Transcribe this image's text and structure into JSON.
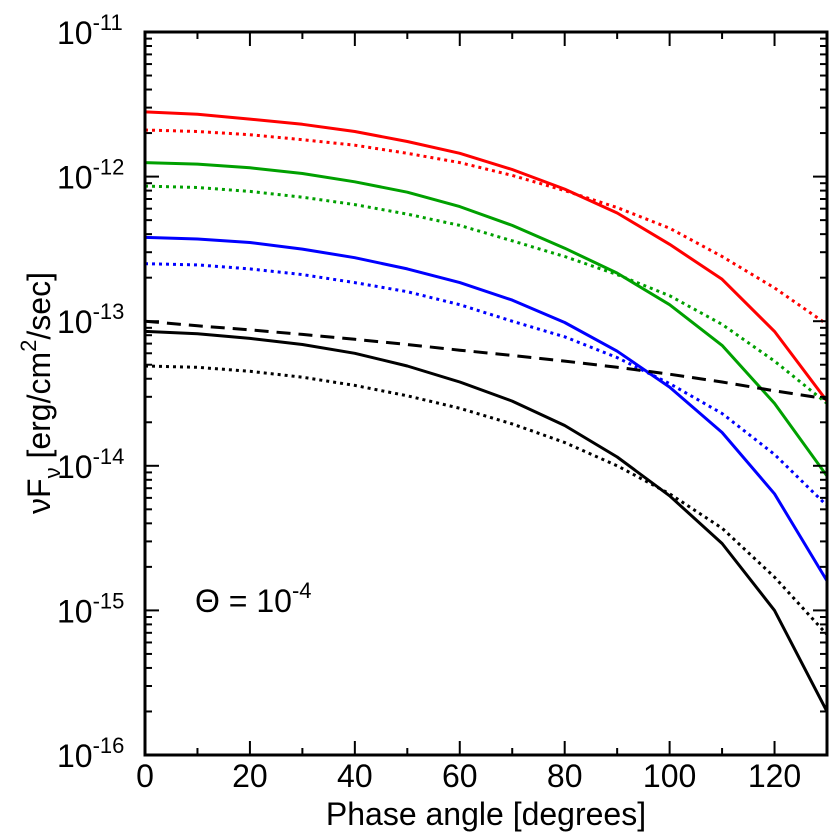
{
  "chart_data": {
    "type": "line",
    "xlabel": "Phase angle [degrees]",
    "ylabel": {
      "pre": "νF",
      "sub": "ν",
      "mid": " [erg/cm",
      "sup": "2",
      "post": "/sec]"
    },
    "annotation": {
      "pre": "Θ = 10",
      "sup": "-4"
    },
    "xlim": [
      0,
      130
    ],
    "ylim": [
      1e-16,
      1e-11
    ],
    "yscale": "log",
    "x_ticks": [
      0,
      20,
      40,
      60,
      80,
      100,
      120
    ],
    "y_ticks": [
      {
        "exp": -16,
        "base": "10",
        "sup": "-16"
      },
      {
        "exp": -15,
        "base": "10",
        "sup": "-15"
      },
      {
        "exp": -14,
        "base": "10",
        "sup": "-14"
      },
      {
        "exp": -13,
        "base": "10",
        "sup": "-13"
      },
      {
        "exp": -12,
        "base": "10",
        "sup": "-12"
      },
      {
        "exp": -11,
        "base": "10",
        "sup": "-11"
      }
    ],
    "x": [
      0,
      10,
      20,
      30,
      40,
      50,
      60,
      70,
      80,
      90,
      100,
      110,
      120,
      130
    ],
    "series": [
      {
        "color": "#ff0000",
        "style": "solid",
        "values": [
          2.8e-12,
          2.7e-12,
          2.5e-12,
          2.3e-12,
          2.05e-12,
          1.75e-12,
          1.45e-12,
          1.12e-12,
          8.2e-13,
          5.6e-13,
          3.4e-13,
          1.95e-13,
          8.5e-14,
          2.8e-14
        ]
      },
      {
        "color": "#ff0000",
        "style": "dotted",
        "values": [
          2.1e-12,
          2.05e-12,
          1.95e-12,
          1.8e-12,
          1.65e-12,
          1.45e-12,
          1.25e-12,
          1.02e-12,
          8e-13,
          6.1e-13,
          4.4e-13,
          2.8e-13,
          1.7e-13,
          9.5e-14
        ]
      },
      {
        "color": "#00a000",
        "style": "solid",
        "values": [
          1.25e-12,
          1.22e-12,
          1.15e-12,
          1.05e-12,
          9.2e-13,
          7.8e-13,
          6.2e-13,
          4.6e-13,
          3.2e-13,
          2.15e-13,
          1.3e-13,
          6.8e-14,
          2.7e-14,
          8.5e-15
        ]
      },
      {
        "color": "#00a000",
        "style": "dotted",
        "values": [
          8.6e-13,
          8.4e-13,
          7.9e-13,
          7.2e-13,
          6.4e-13,
          5.5e-13,
          4.6e-13,
          3.6e-13,
          2.8e-13,
          2.1e-13,
          1.5e-13,
          9.5e-14,
          5.3e-14,
          2.7e-14
        ]
      },
      {
        "color": "#0000ff",
        "style": "solid",
        "values": [
          3.8e-13,
          3.7e-13,
          3.5e-13,
          3.15e-13,
          2.75e-13,
          2.3e-13,
          1.85e-13,
          1.4e-13,
          9.8e-14,
          6.2e-14,
          3.5e-14,
          1.7e-14,
          6.4e-15,
          1.6e-15
        ]
      },
      {
        "color": "#0000ff",
        "style": "dotted",
        "values": [
          2.5e-13,
          2.45e-13,
          2.3e-13,
          2.1e-13,
          1.85e-13,
          1.6e-13,
          1.3e-13,
          1e-13,
          7.8e-14,
          5.6e-14,
          3.7e-14,
          2.3e-14,
          1.2e-14,
          5.3e-15
        ]
      },
      {
        "color": "#000000",
        "style": "solid",
        "values": [
          8.5e-14,
          8.2e-14,
          7.6e-14,
          6.9e-14,
          6e-14,
          4.9e-14,
          3.8e-14,
          2.8e-14,
          1.9e-14,
          1.15e-14,
          6.2e-15,
          2.9e-15,
          1e-15,
          2e-16
        ]
      },
      {
        "color": "#000000",
        "style": "dotted",
        "values": [
          4.9e-14,
          4.8e-14,
          4.5e-14,
          4.1e-14,
          3.6e-14,
          3.05e-14,
          2.5e-14,
          1.95e-14,
          1.45e-14,
          1e-14,
          6.4e-15,
          3.7e-15,
          1.7e-15,
          6.8e-16
        ]
      },
      {
        "color": "#000000",
        "style": "dashed",
        "values": [
          1e-13,
          9.3e-14,
          8.7e-14,
          8.1e-14,
          7.5e-14,
          6.9e-14,
          6.3e-14,
          5.8e-14,
          5.3e-14,
          4.8e-14,
          4.3e-14,
          3.8e-14,
          3.3e-14,
          2.9e-14
        ]
      }
    ]
  }
}
